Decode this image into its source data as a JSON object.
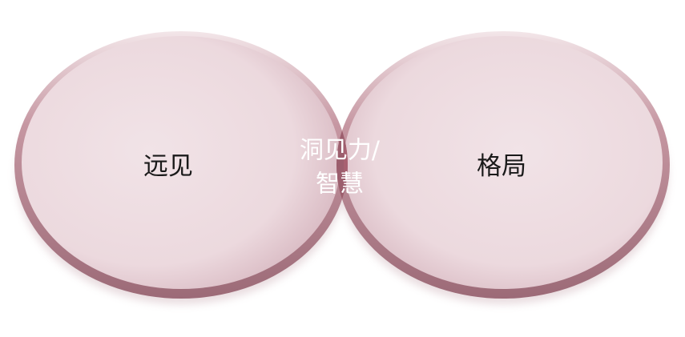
{
  "diagram": {
    "type": "venn",
    "left_label": "远见",
    "right_label": "格局",
    "intersection_label_line1": "洞见力/",
    "intersection_label_line2": "智慧"
  },
  "colors": {
    "circle_fill_light": "#f3e6e9",
    "circle_fill_mid": "#e6cfd5",
    "circle_rim": "#b78793",
    "circle_rim_dark": "#9c6a77",
    "intersection_fill": "#b6727f",
    "intersection_fill_dark": "#a65a6a",
    "shadow": "#d9c3c8"
  }
}
